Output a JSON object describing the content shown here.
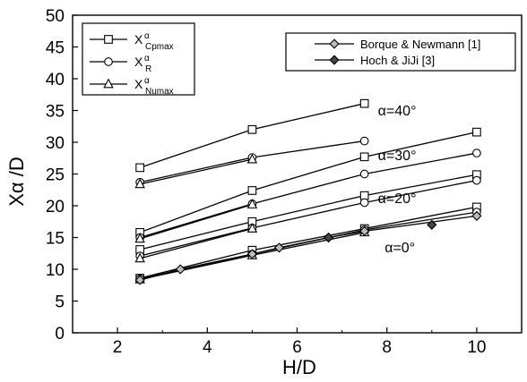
{
  "chart_data": {
    "type": "line",
    "xlabel": "H/D",
    "ylabel": "Xα /D",
    "xlim": [
      1,
      11
    ],
    "ylim": [
      0,
      50
    ],
    "xticks": [
      2,
      4,
      6,
      8,
      10
    ],
    "yticks": [
      0,
      5,
      10,
      15,
      20,
      25,
      30,
      35,
      40,
      45,
      50
    ],
    "grid": false,
    "legends": {
      "left": {
        "placement": "top-left",
        "entries": [
          {
            "marker": "square",
            "base": "X",
            "sup": "α",
            "sub": "Cpmax"
          },
          {
            "marker": "circle",
            "base": "X",
            "sup": "α",
            "sub": "R"
          },
          {
            "marker": "triangle",
            "base": "X",
            "sup": "α",
            "sub": "Numax"
          }
        ]
      },
      "right": {
        "placement": "top-right",
        "entries": [
          {
            "marker": "diamond",
            "label": "Borque & Newmann [1]"
          },
          {
            "marker": "diamond-filled",
            "label": "Hoch & JiJi [3]"
          }
        ]
      }
    },
    "annotations": [
      {
        "text": "α=40°",
        "x": 7.8,
        "y": 34.2
      },
      {
        "text": "α=30°",
        "x": 7.8,
        "y": 27.2
      },
      {
        "text": "α=20°",
        "x": 7.8,
        "y": 20.4
      },
      {
        "text": "α=0°",
        "x": 7.95,
        "y": 12.7
      }
    ],
    "series": [
      {
        "group": "40",
        "marker": "square",
        "x": [
          2.5,
          5,
          7.5
        ],
        "y": [
          26.0,
          32.0,
          36.1
        ]
      },
      {
        "group": "40",
        "marker": "circle",
        "x": [
          2.5,
          5,
          7.5
        ],
        "y": [
          23.7,
          27.6,
          30.2
        ]
      },
      {
        "group": "40",
        "marker": "triangle",
        "x": [
          2.5,
          5
        ],
        "y": [
          23.4,
          27.3
        ]
      },
      {
        "group": "30",
        "marker": "square",
        "x": [
          2.5,
          5,
          7.5,
          10
        ],
        "y": [
          15.8,
          22.4,
          27.7,
          31.6
        ]
      },
      {
        "group": "30",
        "marker": "circle",
        "x": [
          2.5,
          5,
          7.5,
          10
        ],
        "y": [
          15.0,
          20.3,
          25.0,
          28.3
        ]
      },
      {
        "group": "30",
        "marker": "triangle",
        "x": [
          2.5,
          5
        ],
        "y": [
          14.8,
          20.2
        ]
      },
      {
        "group": "20",
        "marker": "square",
        "x": [
          2.5,
          5,
          7.5,
          10
        ],
        "y": [
          13.1,
          17.5,
          21.6,
          24.9
        ]
      },
      {
        "group": "20",
        "marker": "circle",
        "x": [
          2.5,
          5,
          7.5,
          10
        ],
        "y": [
          12.1,
          16.5,
          20.5,
          24.0
        ]
      },
      {
        "group": "20",
        "marker": "triangle",
        "x": [
          2.5,
          5
        ],
        "y": [
          11.7,
          16.4
        ]
      },
      {
        "group": "0",
        "marker": "square",
        "x": [
          2.5,
          5,
          7.5,
          10
        ],
        "y": [
          8.6,
          13.0,
          16.4,
          19.8
        ]
      },
      {
        "group": "0",
        "marker": "circle",
        "x": [
          2.5,
          5,
          7.5,
          10
        ],
        "y": [
          8.5,
          12.4,
          16.2,
          19.0
        ]
      },
      {
        "group": "0",
        "marker": "triangle",
        "x": [
          2.5,
          5,
          7.5
        ],
        "y": [
          8.4,
          12.2,
          15.8
        ]
      },
      {
        "group": "ref",
        "name": "Borque & Newmann [1]",
        "marker": "diamond",
        "x": [
          2.5,
          3.4,
          5.0,
          5.6,
          6.7,
          7.5,
          10
        ],
        "y": [
          8.3,
          10.0,
          12.4,
          13.4,
          15.0,
          16.0,
          18.4
        ]
      },
      {
        "group": "ref",
        "name": "Hoch & JiJi [3]",
        "marker": "diamond-filled",
        "line": false,
        "x": [
          6.7,
          9.0
        ],
        "y": [
          15.0,
          17.0
        ]
      }
    ]
  }
}
